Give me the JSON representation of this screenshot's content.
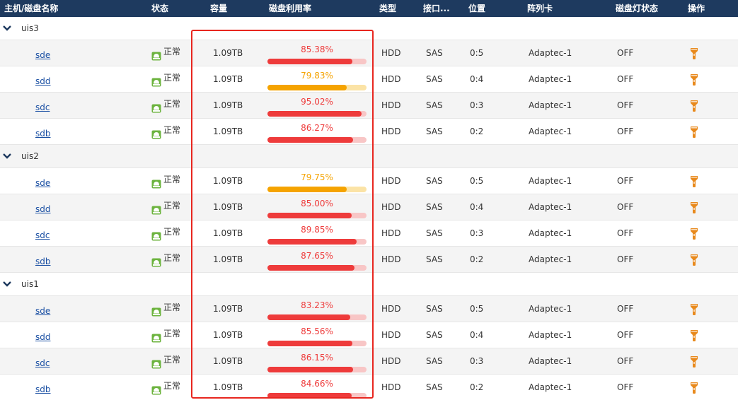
{
  "header": {
    "host_disk_name": "主机/磁盘名称",
    "status": "状态",
    "capacity": "容量",
    "usage": "磁盘利用率",
    "type": "类型",
    "interface": "接口...",
    "position": "位置",
    "raid_card": "阵列卡",
    "light_status": "磁盘灯状态",
    "operation": "操作"
  },
  "colors": {
    "header_bg": "#1e3a5f",
    "usage_high": "#ee3b3b",
    "usage_high_track": "#f8c6c6",
    "usage_mid": "#f5a300",
    "usage_mid_track": "#fbe3a6",
    "status_ok": "#6cb33e",
    "op_icon": "#e8891c",
    "highlight_border": "#e8261f"
  },
  "icons": {
    "group_toggle": "chevron-down-icon",
    "status": "disk-ok-icon",
    "operation": "flashlight-icon"
  },
  "groups": [
    {
      "name": "uis3",
      "disks": [
        {
          "name": "sde",
          "status": "正常",
          "capacity": "1.09TB",
          "usage_text": "85.38%",
          "usage": 85.38,
          "level": "high",
          "type": "HDD",
          "interface": "SAS",
          "position": "0:5",
          "raid_card": "Adaptec-1",
          "light": "OFF"
        },
        {
          "name": "sdd",
          "status": "正常",
          "capacity": "1.09TB",
          "usage_text": "79.83%",
          "usage": 79.83,
          "level": "mid",
          "type": "HDD",
          "interface": "SAS",
          "position": "0:4",
          "raid_card": "Adaptec-1",
          "light": "OFF"
        },
        {
          "name": "sdc",
          "status": "正常",
          "capacity": "1.09TB",
          "usage_text": "95.02%",
          "usage": 95.02,
          "level": "high",
          "type": "HDD",
          "interface": "SAS",
          "position": "0:3",
          "raid_card": "Adaptec-1",
          "light": "OFF"
        },
        {
          "name": "sdb",
          "status": "正常",
          "capacity": "1.09TB",
          "usage_text": "86.27%",
          "usage": 86.27,
          "level": "high",
          "type": "HDD",
          "interface": "SAS",
          "position": "0:2",
          "raid_card": "Adaptec-1",
          "light": "OFF"
        }
      ]
    },
    {
      "name": "uis2",
      "disks": [
        {
          "name": "sde",
          "status": "正常",
          "capacity": "1.09TB",
          "usage_text": "79.75%",
          "usage": 79.75,
          "level": "mid",
          "type": "HDD",
          "interface": "SAS",
          "position": "0:5",
          "raid_card": "Adaptec-1",
          "light": "OFF"
        },
        {
          "name": "sdd",
          "status": "正常",
          "capacity": "1.09TB",
          "usage_text": "85.00%",
          "usage": 85.0,
          "level": "high",
          "type": "HDD",
          "interface": "SAS",
          "position": "0:4",
          "raid_card": "Adaptec-1",
          "light": "OFF"
        },
        {
          "name": "sdc",
          "status": "正常",
          "capacity": "1.09TB",
          "usage_text": "89.85%",
          "usage": 89.85,
          "level": "high",
          "type": "HDD",
          "interface": "SAS",
          "position": "0:3",
          "raid_card": "Adaptec-1",
          "light": "OFF"
        },
        {
          "name": "sdb",
          "status": "正常",
          "capacity": "1.09TB",
          "usage_text": "87.65%",
          "usage": 87.65,
          "level": "high",
          "type": "HDD",
          "interface": "SAS",
          "position": "0:2",
          "raid_card": "Adaptec-1",
          "light": "OFF"
        }
      ]
    },
    {
      "name": "uis1",
      "disks": [
        {
          "name": "sde",
          "status": "正常",
          "capacity": "1.09TB",
          "usage_text": "83.23%",
          "usage": 83.23,
          "level": "high",
          "type": "HDD",
          "interface": "SAS",
          "position": "0:5",
          "raid_card": "Adaptec-1",
          "light": "OFF"
        },
        {
          "name": "sdd",
          "status": "正常",
          "capacity": "1.09TB",
          "usage_text": "85.56%",
          "usage": 85.56,
          "level": "high",
          "type": "HDD",
          "interface": "SAS",
          "position": "0:4",
          "raid_card": "Adaptec-1",
          "light": "OFF"
        },
        {
          "name": "sdc",
          "status": "正常",
          "capacity": "1.09TB",
          "usage_text": "86.15%",
          "usage": 86.15,
          "level": "high",
          "type": "HDD",
          "interface": "SAS",
          "position": "0:3",
          "raid_card": "Adaptec-1",
          "light": "OFF"
        },
        {
          "name": "sdb",
          "status": "正常",
          "capacity": "1.09TB",
          "usage_text": "84.66%",
          "usage": 84.66,
          "level": "high",
          "type": "HDD",
          "interface": "SAS",
          "position": "0:2",
          "raid_card": "Adaptec-1",
          "light": "OFF"
        }
      ]
    }
  ]
}
